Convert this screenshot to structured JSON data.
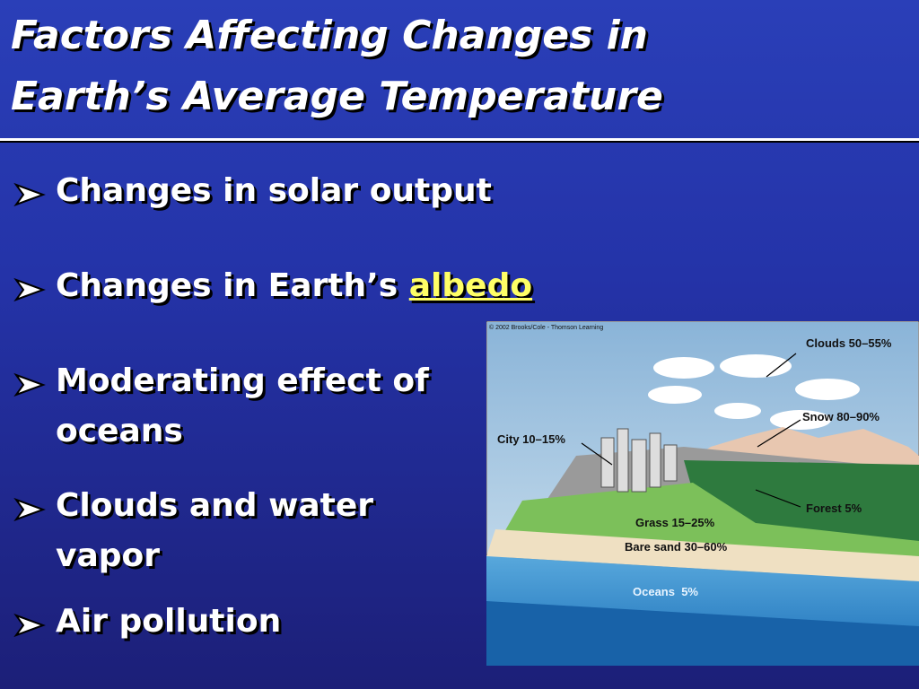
{
  "title": {
    "lines": [
      "Factors Affecting Changes in",
      "Earth’s Average Temperature"
    ]
  },
  "bullets": [
    {
      "lines": [
        "Changes in solar output"
      ]
    },
    {
      "lines": [
        "Changes in Earth’s"
      ],
      "link": "albedo"
    },
    {
      "lines": [
        "Moderating effect of",
        "oceans"
      ]
    },
    {
      "lines": [
        "Clouds and water",
        "vapor"
      ]
    },
    {
      "lines": [
        "Air pollution"
      ]
    }
  ],
  "figure": {
    "credit": "© 2002 Brooks/Cole - Thomson Learning",
    "labels": {
      "clouds": "Clouds 50–55%",
      "snow": "Snow 80–90%",
      "city": "City 10–15%",
      "forest": "Forest 5%",
      "grass": "Grass 15–25%",
      "sand": "Bare sand 30–60%",
      "oceans": "Oceans  5%"
    }
  }
}
